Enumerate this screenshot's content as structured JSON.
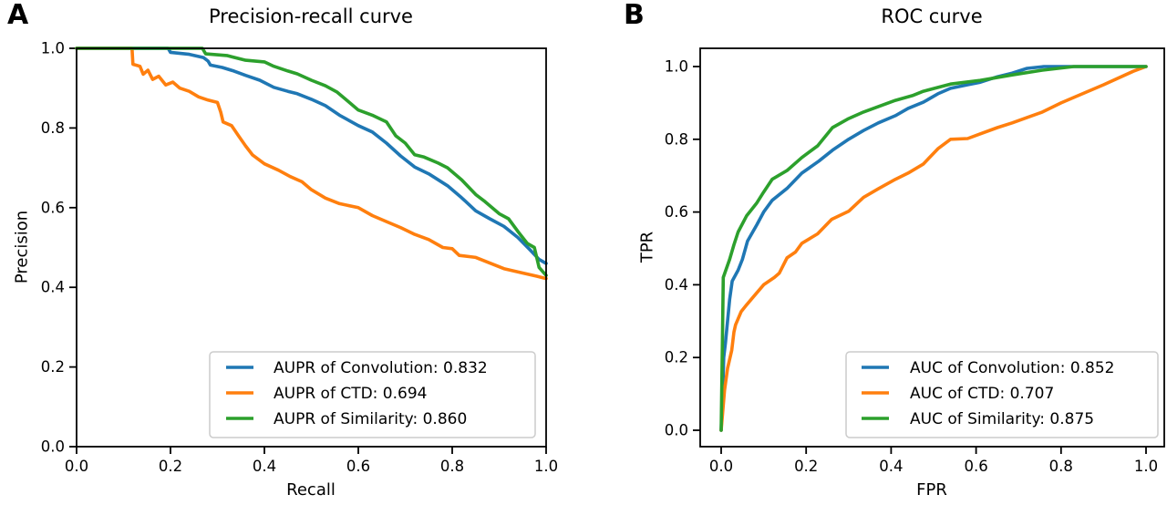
{
  "colors": {
    "axis": "#000000",
    "legend_border": "#cccccc",
    "background": "#ffffff",
    "convolution": "#1f77b4",
    "ctd": "#ff7f0e",
    "similarity": "#2ca02c"
  },
  "chart_data": [
    {
      "type": "line",
      "panel": "A",
      "title": "Precision-recall curve",
      "xlabel": "Recall",
      "ylabel": "Precision",
      "xlim": [
        0.0,
        1.0
      ],
      "ylim": [
        0.0,
        1.0
      ],
      "xticks": [
        0.0,
        0.2,
        0.4,
        0.6,
        0.8,
        1.0
      ],
      "yticks": [
        0.0,
        0.2,
        0.4,
        0.6,
        0.8,
        1.0
      ],
      "grid": false,
      "legend_position": "lower right",
      "series": [
        {
          "name": "AUPR of Convolution: 0.832",
          "slug": "convolution",
          "metric": "AUPR",
          "value": 0.832,
          "color": "#1f77b4",
          "points": [
            [
              0,
              1
            ],
            [
              0.195,
              1
            ],
            [
              0.2,
              0.99
            ],
            [
              0.24,
              0.985
            ],
            [
              0.27,
              0.977
            ],
            [
              0.28,
              0.968
            ],
            [
              0.285,
              0.958
            ],
            [
              0.31,
              0.952
            ],
            [
              0.335,
              0.943
            ],
            [
              0.36,
              0.932
            ],
            [
              0.39,
              0.92
            ],
            [
              0.42,
              0.902
            ],
            [
              0.45,
              0.892
            ],
            [
              0.47,
              0.886
            ],
            [
              0.5,
              0.872
            ],
            [
              0.53,
              0.856
            ],
            [
              0.56,
              0.832
            ],
            [
              0.6,
              0.806
            ],
            [
              0.63,
              0.79
            ],
            [
              0.66,
              0.762
            ],
            [
              0.69,
              0.73
            ],
            [
              0.72,
              0.702
            ],
            [
              0.75,
              0.685
            ],
            [
              0.79,
              0.655
            ],
            [
              0.82,
              0.625
            ],
            [
              0.85,
              0.592
            ],
            [
              0.88,
              0.572
            ],
            [
              0.91,
              0.553
            ],
            [
              0.94,
              0.525
            ],
            [
              0.965,
              0.495
            ],
            [
              0.985,
              0.47
            ],
            [
              1,
              0.46
            ]
          ]
        },
        {
          "name": "AUPR of CTD: 0.694",
          "slug": "ctd",
          "metric": "AUPR",
          "value": 0.694,
          "color": "#ff7f0e",
          "points": [
            [
              0,
              1
            ],
            [
              0.118,
              1
            ],
            [
              0.12,
              0.96
            ],
            [
              0.135,
              0.955
            ],
            [
              0.142,
              0.935
            ],
            [
              0.152,
              0.945
            ],
            [
              0.162,
              0.922
            ],
            [
              0.175,
              0.93
            ],
            [
              0.19,
              0.908
            ],
            [
              0.205,
              0.915
            ],
            [
              0.22,
              0.9
            ],
            [
              0.24,
              0.892
            ],
            [
              0.26,
              0.878
            ],
            [
              0.28,
              0.87
            ],
            [
              0.3,
              0.864
            ],
            [
              0.307,
              0.84
            ],
            [
              0.312,
              0.815
            ],
            [
              0.33,
              0.806
            ],
            [
              0.345,
              0.78
            ],
            [
              0.36,
              0.755
            ],
            [
              0.375,
              0.732
            ],
            [
              0.4,
              0.71
            ],
            [
              0.43,
              0.694
            ],
            [
              0.455,
              0.678
            ],
            [
              0.48,
              0.665
            ],
            [
              0.5,
              0.645
            ],
            [
              0.53,
              0.624
            ],
            [
              0.56,
              0.61
            ],
            [
              0.6,
              0.6
            ],
            [
              0.63,
              0.58
            ],
            [
              0.66,
              0.565
            ],
            [
              0.69,
              0.55
            ],
            [
              0.72,
              0.533
            ],
            [
              0.75,
              0.52
            ],
            [
              0.78,
              0.5
            ],
            [
              0.8,
              0.497
            ],
            [
              0.815,
              0.48
            ],
            [
              0.85,
              0.475
            ],
            [
              0.91,
              0.447
            ],
            [
              0.95,
              0.436
            ],
            [
              0.98,
              0.428
            ],
            [
              1,
              0.422
            ]
          ]
        },
        {
          "name": "AUPR of Similarity: 0.860",
          "slug": "similarity",
          "metric": "AUPR",
          "value": 0.86,
          "color": "#2ca02c",
          "points": [
            [
              0,
              1
            ],
            [
              0.268,
              1
            ],
            [
              0.275,
              0.986
            ],
            [
              0.32,
              0.982
            ],
            [
              0.36,
              0.97
            ],
            [
              0.4,
              0.966
            ],
            [
              0.42,
              0.955
            ],
            [
              0.45,
              0.943
            ],
            [
              0.47,
              0.936
            ],
            [
              0.5,
              0.92
            ],
            [
              0.53,
              0.906
            ],
            [
              0.555,
              0.89
            ],
            [
              0.575,
              0.87
            ],
            [
              0.6,
              0.845
            ],
            [
              0.63,
              0.832
            ],
            [
              0.66,
              0.815
            ],
            [
              0.68,
              0.78
            ],
            [
              0.7,
              0.762
            ],
            [
              0.72,
              0.733
            ],
            [
              0.74,
              0.727
            ],
            [
              0.77,
              0.712
            ],
            [
              0.79,
              0.7
            ],
            [
              0.82,
              0.67
            ],
            [
              0.85,
              0.633
            ],
            [
              0.87,
              0.615
            ],
            [
              0.9,
              0.585
            ],
            [
              0.92,
              0.572
            ],
            [
              0.94,
              0.54
            ],
            [
              0.96,
              0.51
            ],
            [
              0.975,
              0.5
            ],
            [
              0.985,
              0.45
            ],
            [
              1,
              0.43
            ]
          ]
        }
      ]
    },
    {
      "type": "line",
      "panel": "B",
      "title": "ROC curve",
      "xlabel": "FPR",
      "ylabel": "TPR",
      "xlim": [
        0.0,
        1.0
      ],
      "ylim": [
        0.0,
        1.0
      ],
      "xticks": [
        0.0,
        0.2,
        0.4,
        0.6,
        0.8,
        1.0
      ],
      "yticks": [
        0.0,
        0.2,
        0.4,
        0.6,
        0.8,
        1.0
      ],
      "grid": false,
      "legend_position": "lower right",
      "series": [
        {
          "name": "AUC of Convolution: 0.852",
          "slug": "convolution",
          "metric": "AUC",
          "value": 0.852,
          "color": "#1f77b4",
          "points": [
            [
              0,
              0
            ],
            [
              0.004,
              0.12
            ],
            [
              0.006,
              0.2
            ],
            [
              0.01,
              0.24
            ],
            [
              0.015,
              0.3
            ],
            [
              0.02,
              0.36
            ],
            [
              0.026,
              0.41
            ],
            [
              0.04,
              0.44
            ],
            [
              0.05,
              0.47
            ],
            [
              0.062,
              0.52
            ],
            [
              0.084,
              0.565
            ],
            [
              0.1,
              0.6
            ],
            [
              0.12,
              0.632
            ],
            [
              0.155,
              0.665
            ],
            [
              0.19,
              0.707
            ],
            [
              0.23,
              0.74
            ],
            [
              0.262,
              0.77
            ],
            [
              0.3,
              0.8
            ],
            [
              0.335,
              0.824
            ],
            [
              0.37,
              0.845
            ],
            [
              0.41,
              0.865
            ],
            [
              0.44,
              0.885
            ],
            [
              0.476,
              0.902
            ],
            [
              0.51,
              0.925
            ],
            [
              0.54,
              0.94
            ],
            [
              0.58,
              0.95
            ],
            [
              0.61,
              0.957
            ],
            [
              0.65,
              0.972
            ],
            [
              0.685,
              0.982
            ],
            [
              0.72,
              0.995
            ],
            [
              0.76,
              1
            ],
            [
              1,
              1
            ]
          ]
        },
        {
          "name": "AUC of CTD: 0.707",
          "slug": "ctd",
          "metric": "AUC",
          "value": 0.707,
          "color": "#ff7f0e",
          "points": [
            [
              0,
              0
            ],
            [
              0.008,
              0.11
            ],
            [
              0.015,
              0.17
            ],
            [
              0.025,
              0.22
            ],
            [
              0.03,
              0.27
            ],
            [
              0.034,
              0.29
            ],
            [
              0.047,
              0.326
            ],
            [
              0.06,
              0.345
            ],
            [
              0.073,
              0.363
            ],
            [
              0.1,
              0.4
            ],
            [
              0.125,
              0.42
            ],
            [
              0.137,
              0.432
            ],
            [
              0.155,
              0.474
            ],
            [
              0.175,
              0.49
            ],
            [
              0.19,
              0.514
            ],
            [
              0.227,
              0.54
            ],
            [
              0.26,
              0.58
            ],
            [
              0.3,
              0.602
            ],
            [
              0.335,
              0.64
            ],
            [
              0.37,
              0.664
            ],
            [
              0.41,
              0.69
            ],
            [
              0.44,
              0.707
            ],
            [
              0.476,
              0.732
            ],
            [
              0.51,
              0.774
            ],
            [
              0.54,
              0.8
            ],
            [
              0.58,
              0.802
            ],
            [
              0.61,
              0.815
            ],
            [
              0.65,
              0.832
            ],
            [
              0.685,
              0.845
            ],
            [
              0.72,
              0.86
            ],
            [
              0.756,
              0.875
            ],
            [
              0.8,
              0.9
            ],
            [
              0.83,
              0.915
            ],
            [
              0.9,
              0.95
            ],
            [
              0.97,
              0.987
            ],
            [
              1,
              1
            ]
          ]
        },
        {
          "name": "AUC of Similarity: 0.875",
          "slug": "similarity",
          "metric": "AUC",
          "value": 0.875,
          "color": "#2ca02c",
          "points": [
            [
              0,
              0
            ],
            [
              0.003,
              0.25
            ],
            [
              0.005,
              0.42
            ],
            [
              0.02,
              0.47
            ],
            [
              0.03,
              0.51
            ],
            [
              0.04,
              0.545
            ],
            [
              0.06,
              0.59
            ],
            [
              0.084,
              0.625
            ],
            [
              0.1,
              0.655
            ],
            [
              0.12,
              0.69
            ],
            [
              0.155,
              0.714
            ],
            [
              0.19,
              0.75
            ],
            [
              0.227,
              0.782
            ],
            [
              0.262,
              0.832
            ],
            [
              0.3,
              0.857
            ],
            [
              0.335,
              0.875
            ],
            [
              0.37,
              0.89
            ],
            [
              0.41,
              0.907
            ],
            [
              0.45,
              0.92
            ],
            [
              0.476,
              0.932
            ],
            [
              0.54,
              0.952
            ],
            [
              0.61,
              0.962
            ],
            [
              0.685,
              0.977
            ],
            [
              0.756,
              0.99
            ],
            [
              0.83,
              1
            ],
            [
              1,
              1
            ]
          ]
        }
      ]
    }
  ]
}
